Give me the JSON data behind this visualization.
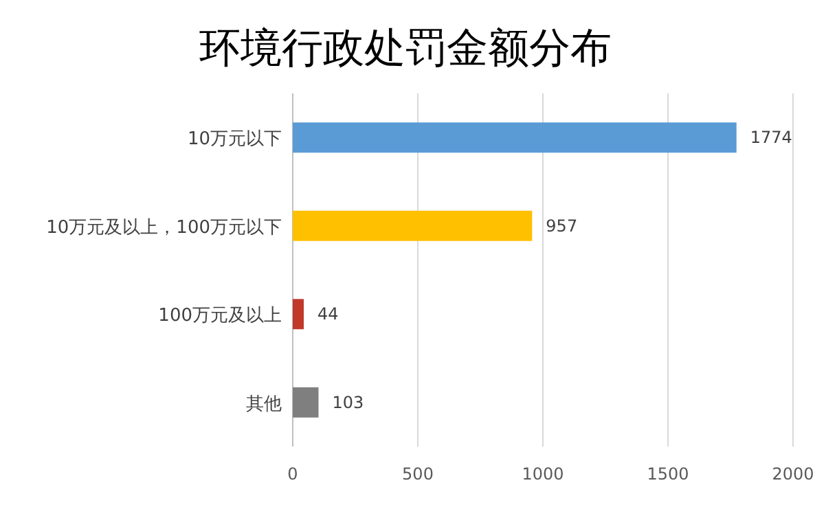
{
  "chart_data": {
    "type": "bar",
    "orientation": "horizontal",
    "title": "环境行政处罚金额分布",
    "categories": [
      "10万元以下",
      "10万元及以上，100万元以下",
      "100万元及以上",
      "其他"
    ],
    "values": [
      1774,
      957,
      44,
      103
    ],
    "colors": [
      "#5b9bd5",
      "#ffc000",
      "#c0392b",
      "#7f7f7f"
    ],
    "xlim": [
      0,
      2000
    ],
    "xticks": [
      0,
      500,
      1000,
      1500,
      2000
    ],
    "grid": "x",
    "data_labels": true
  }
}
